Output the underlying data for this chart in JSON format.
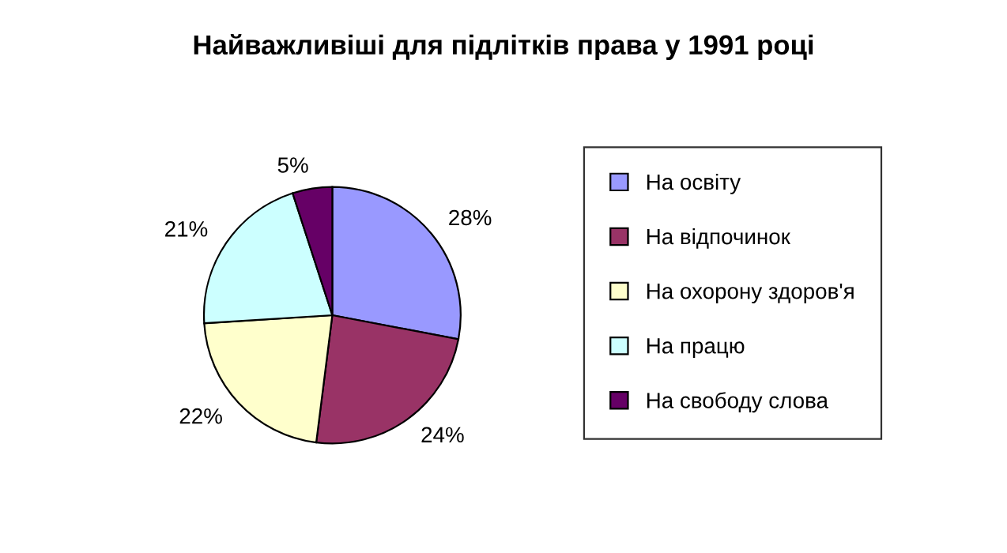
{
  "chart_data": {
    "type": "pie",
    "title": "Найважливіші для підлітків права у 1991 році",
    "categories": [
      "На освіту",
      "На відпочинок",
      "На охорону здоров'я",
      "На працю",
      "На свободу слова"
    ],
    "values": [
      28,
      24,
      22,
      21,
      5
    ],
    "colors": [
      "#9999ff",
      "#993366",
      "#ffffcc",
      "#ccffff",
      "#660066"
    ],
    "value_labels": [
      "28%",
      "24%",
      "22%",
      "21%",
      "5%"
    ],
    "legend": "right"
  }
}
